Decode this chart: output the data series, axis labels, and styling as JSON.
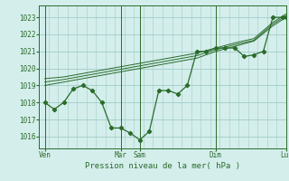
{
  "background_color": "#d4eeec",
  "grid_color": "#a0ccc8",
  "line_color": "#2a6b2a",
  "xlabel": "Pression niveau de la mer( hPa )",
  "ylim": [
    1015.3,
    1023.7
  ],
  "yticks": [
    1016,
    1017,
    1018,
    1019,
    1020,
    1021,
    1022,
    1023
  ],
  "xlim": [
    0,
    13.0
  ],
  "x_tick_labels": [
    "Ven",
    "Mar",
    "Sam",
    "Dim",
    "Lun"
  ],
  "x_tick_positions": [
    0.3,
    4.3,
    5.3,
    9.3,
    13.0
  ],
  "vlines_x": [
    0.3,
    4.3,
    5.3,
    9.3,
    13.0
  ],
  "line1_x": [
    0.3,
    0.8,
    1.3,
    1.8,
    2.3,
    2.8,
    3.3,
    3.8,
    4.3,
    4.8,
    5.3,
    5.8,
    6.3,
    6.8,
    7.3,
    7.8,
    8.3,
    8.8,
    9.3,
    9.8,
    10.3,
    10.8,
    11.3,
    11.8,
    12.3,
    12.8,
    13.0
  ],
  "line1_y": [
    1018.0,
    1017.6,
    1018.0,
    1018.8,
    1019.0,
    1018.7,
    1018.0,
    1016.5,
    1016.5,
    1016.2,
    1015.8,
    1016.3,
    1018.7,
    1018.7,
    1018.5,
    1019.0,
    1021.0,
    1021.0,
    1021.2,
    1021.2,
    1021.2,
    1020.7,
    1020.8,
    1021.0,
    1023.0,
    1023.0,
    1023.0
  ],
  "line2_x": [
    0.3,
    1.3,
    2.3,
    3.3,
    4.3,
    5.3,
    6.3,
    7.3,
    8.3,
    9.3,
    10.3,
    11.3,
    12.3,
    13.0
  ],
  "line2_y": [
    1019.0,
    1019.2,
    1019.4,
    1019.6,
    1019.8,
    1020.0,
    1020.2,
    1020.4,
    1020.6,
    1021.0,
    1021.3,
    1021.6,
    1022.5,
    1023.0
  ],
  "line3_x": [
    0.3,
    1.3,
    2.3,
    3.3,
    4.3,
    5.3,
    6.3,
    7.3,
    8.3,
    9.3,
    10.3,
    11.3,
    12.3,
    13.0
  ],
  "line3_y": [
    1019.2,
    1019.35,
    1019.55,
    1019.75,
    1019.95,
    1020.15,
    1020.35,
    1020.55,
    1020.75,
    1021.1,
    1021.4,
    1021.65,
    1022.6,
    1023.1
  ],
  "line4_x": [
    0.3,
    1.3,
    2.3,
    3.3,
    4.3,
    5.3,
    6.3,
    7.3,
    8.3,
    9.3,
    10.3,
    11.3,
    12.3,
    13.0
  ],
  "line4_y": [
    1019.4,
    1019.5,
    1019.7,
    1019.9,
    1020.1,
    1020.3,
    1020.5,
    1020.7,
    1020.9,
    1021.2,
    1021.5,
    1021.75,
    1022.7,
    1023.2
  ]
}
